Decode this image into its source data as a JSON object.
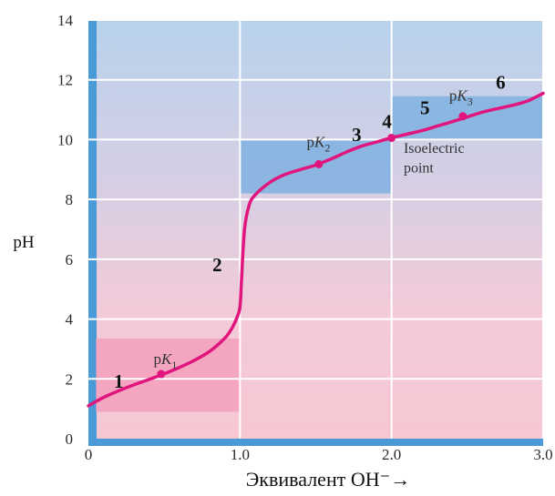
{
  "chart_data": {
    "type": "line",
    "xlabel": "Эквивалент OH⁻→",
    "ylabel": "pH",
    "xlim": [
      0,
      3.0
    ],
    "ylim": [
      0,
      14
    ],
    "x_ticks": [
      0,
      1.0,
      2.0,
      3.0
    ],
    "x_tick_labels": [
      "0",
      "1.0",
      "2.0",
      "3.0"
    ],
    "y_ticks": [
      0,
      2,
      4,
      6,
      8,
      10,
      12,
      14
    ],
    "y_tick_labels": [
      "0",
      "2",
      "4",
      "6",
      "8",
      "10",
      "12",
      "14"
    ],
    "grid": true,
    "series": [
      {
        "color": "#e0157d",
        "x": [
          0.0,
          0.1,
          0.2,
          0.3,
          0.4,
          0.5,
          0.6,
          0.7,
          0.8,
          0.9,
          0.95,
          0.98,
          1.0,
          1.01,
          1.03,
          1.06,
          1.1,
          1.2,
          1.3,
          1.4,
          1.5,
          1.6,
          1.7,
          1.8,
          1.9,
          2.0,
          2.1,
          2.2,
          2.3,
          2.4,
          2.5,
          2.6,
          2.7,
          2.8,
          2.9,
          3.0
        ],
        "y": [
          1.1,
          1.38,
          1.6,
          1.8,
          1.98,
          2.17,
          2.38,
          2.62,
          2.92,
          3.36,
          3.72,
          4.05,
          4.4,
          5.3,
          7.0,
          7.8,
          8.15,
          8.58,
          8.84,
          9.0,
          9.15,
          9.35,
          9.58,
          9.78,
          9.92,
          10.06,
          10.18,
          10.3,
          10.45,
          10.6,
          10.76,
          10.92,
          11.04,
          11.15,
          11.3,
          11.55
        ]
      }
    ],
    "points": [
      {
        "name": "pK1",
        "x": 0.48,
        "y": 2.16
      },
      {
        "name": "pK2",
        "x": 1.52,
        "y": 9.18
      },
      {
        "name": "isoelectric",
        "x": 2.0,
        "y": 10.06
      },
      {
        "name": "pK3",
        "x": 2.47,
        "y": 10.78
      }
    ],
    "regions": [
      {
        "x": [
          0.05,
          1.0
        ],
        "y": [
          0.9,
          3.35
        ],
        "color": "#f3a0bc"
      },
      {
        "x": [
          1.0,
          2.0
        ],
        "y": [
          8.2,
          10.0
        ],
        "color": "#7fb2e0"
      },
      {
        "x": [
          2.0,
          3.0
        ],
        "y": [
          10.0,
          11.45
        ],
        "color": "#7fb2e0"
      }
    ],
    "annotations": {
      "pk1": {
        "base": "p",
        "italic": "K",
        "sub": "1",
        "x": 0.43,
        "y": 2.5
      },
      "pk2": {
        "base": "p",
        "italic": "K",
        "sub": "2",
        "x": 1.44,
        "y": 9.75
      },
      "pk3": {
        "base": "p",
        "italic": "K",
        "sub": "3",
        "x": 2.38,
        "y": 11.3
      },
      "iso_line1": {
        "text": "Isoelectric",
        "x": 2.08,
        "y": 9.55
      },
      "iso_line2": {
        "text": "point",
        "x": 2.08,
        "y": 8.9
      },
      "stages": [
        {
          "text": "1",
          "x": 0.2,
          "y": 1.7
        },
        {
          "text": "2",
          "x": 0.85,
          "y": 5.6
        },
        {
          "text": "3",
          "x": 1.77,
          "y": 9.95
        },
        {
          "text": "4",
          "x": 1.97,
          "y": 10.4
        },
        {
          "text": "5",
          "x": 2.22,
          "y": 10.85
        },
        {
          "text": "6",
          "x": 2.72,
          "y": 11.7
        }
      ]
    }
  }
}
